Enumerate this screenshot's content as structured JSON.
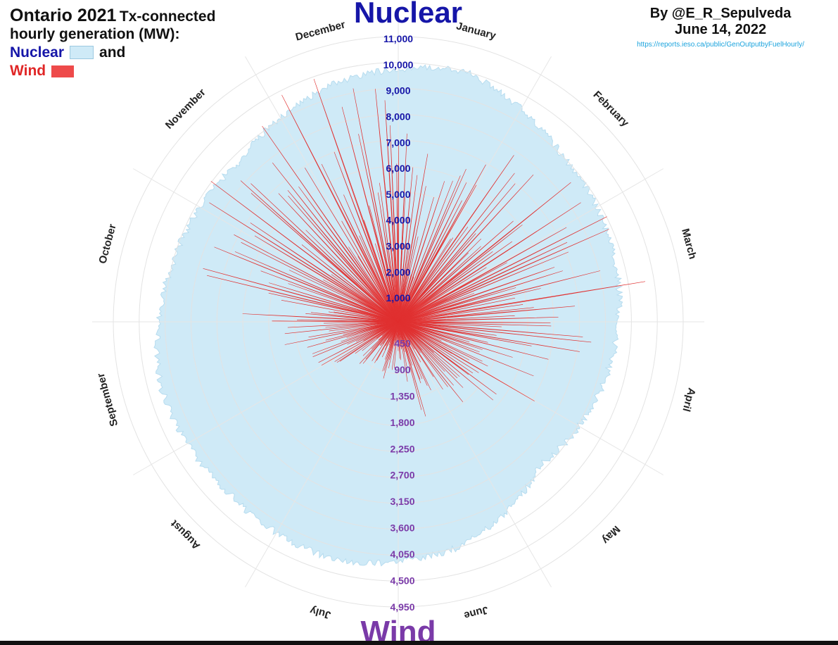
{
  "header": {
    "title_main": "Ontario 2021",
    "title_rest": "Tx-connected",
    "title_line2": "hourly generation (MW):",
    "legend_nuclear": "Nuclear",
    "legend_and": "and",
    "legend_wind": "Wind"
  },
  "credit": {
    "by": "By @E_R_Sepulveda",
    "date": "June 14, 2022",
    "url": "https://reports.ieso.ca/public/GenOutputbyFuelHourly/"
  },
  "colors": {
    "nuclear_fill": "#cfeaf7",
    "wind_fill": "#ee4a4a",
    "nuclear_text": "#1616a8",
    "wind_text": "#7a3aa8"
  },
  "chart_data": {
    "type": "area",
    "coordinate_system": "polar",
    "theta_categories": [
      "January",
      "February",
      "March",
      "April",
      "May",
      "June",
      "July",
      "August",
      "September",
      "October",
      "November",
      "December"
    ],
    "theta_direction": "clockwise from top",
    "grid": true,
    "axes": [
      {
        "name": "Nuclear",
        "unit": "MW",
        "direction": "up",
        "range": [
          0,
          11000
        ],
        "ticks": [
          "1,000",
          "2,000",
          "3,000",
          "4,000",
          "5,000",
          "6,000",
          "7,000",
          "8,000",
          "9,000",
          "10,000",
          "11,000"
        ]
      },
      {
        "name": "Wind",
        "unit": "MW",
        "direction": "down",
        "range": [
          0,
          4950
        ],
        "ticks": [
          "450",
          "900",
          "1,350",
          "1,800",
          "2,250",
          "2,700",
          "3,150",
          "3,600",
          "4,050",
          "4,500",
          "4,950"
        ]
      }
    ],
    "series": [
      {
        "name": "Nuclear",
        "style": "filled radial area",
        "monthly_typical_mw": [
          10000,
          9000,
          8700,
          8300,
          7800,
          9000,
          9500,
          9300,
          9500,
          9000,
          8700,
          9500
        ]
      },
      {
        "name": "Wind",
        "style": "radial spikes",
        "monthly_typical_mw": [
          2000,
          3200,
          3800,
          2500,
          1500,
          800,
          700,
          900,
          1800,
          2500,
          3500,
          3800
        ],
        "monthly_peak_mw": [
          3700,
          3900,
          4500,
          3400,
          2700,
          1900,
          1600,
          1900,
          2900,
          3700,
          4300,
          4400
        ]
      }
    ]
  }
}
